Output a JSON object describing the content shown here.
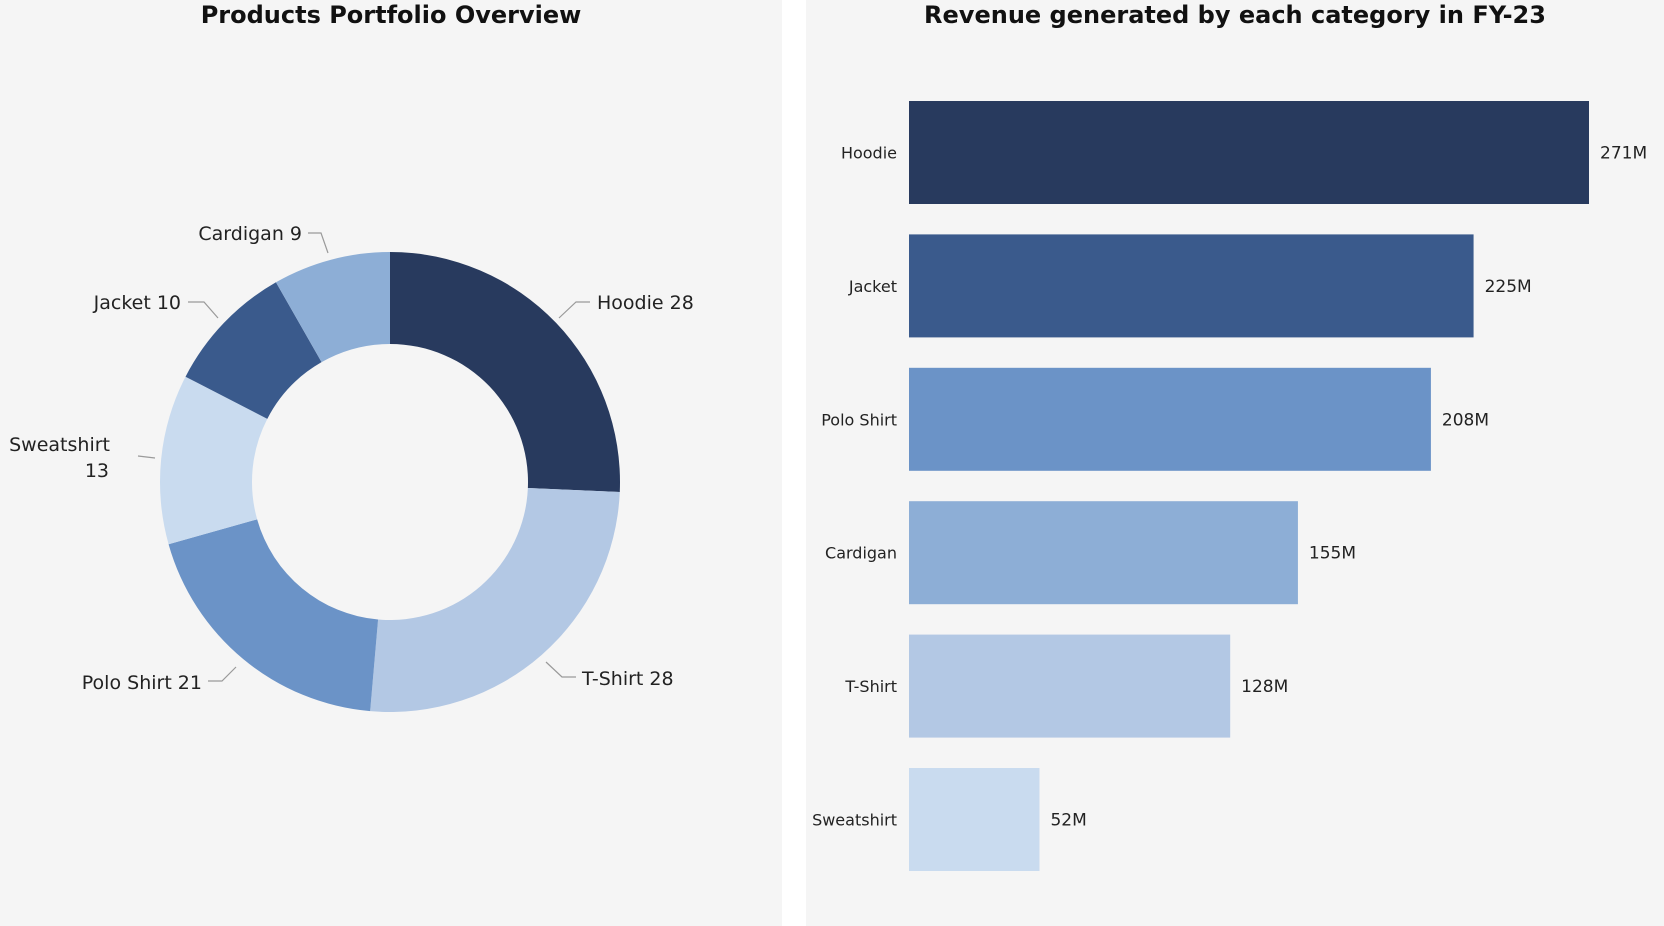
{
  "chart_data": [
    {
      "type": "pie",
      "donut": true,
      "title": "Products Portfolio Overview",
      "slices": [
        {
          "label": "Hoodie",
          "value": 28,
          "color": "#283a5e"
        },
        {
          "label": "T-Shirt",
          "value": 28,
          "color": "#b3c8e4"
        },
        {
          "label": "Polo Shirt",
          "value": 21,
          "color": "#6b93c7"
        },
        {
          "label": "Sweatshirt",
          "value": 13,
          "color": "#c9dbef"
        },
        {
          "label": "Jacket",
          "value": 10,
          "color": "#3a5a8c"
        },
        {
          "label": "Cardigan",
          "value": 9,
          "color": "#8daed6"
        }
      ],
      "data_labels": [
        "Hoodie 28",
        "T-Shirt 28",
        "Polo Shirt 21",
        "Sweatshirt",
        "13",
        "Jacket 10",
        "Cardigan 9"
      ]
    },
    {
      "type": "bar",
      "orientation": "horizontal",
      "title": "Revenue generated by each category in FY-23",
      "categories": [
        "Hoodie",
        "Jacket",
        "Polo Shirt",
        "Cardigan",
        "T-Shirt",
        "Sweatshirt"
      ],
      "values": [
        271,
        225,
        208,
        155,
        128,
        52
      ],
      "value_labels": [
        "271M",
        "225M",
        "208M",
        "155M",
        "128M",
        "52M"
      ],
      "colors": [
        "#283a5e",
        "#3a5a8c",
        "#6b93c7",
        "#8daed6",
        "#b3c8e4",
        "#c9dbef"
      ],
      "xlim": [
        0,
        271
      ]
    }
  ]
}
